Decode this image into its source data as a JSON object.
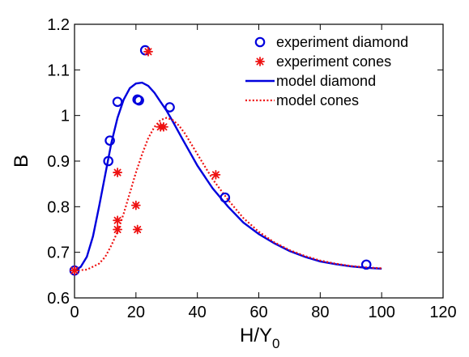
{
  "chart_data": {
    "type": "scatter",
    "title": "",
    "xlabel": "H/Y",
    "xlabel_sub": "0",
    "ylabel": "B",
    "xlim": [
      0,
      120
    ],
    "ylim": [
      0.6,
      1.2
    ],
    "xticks": [
      0,
      20,
      40,
      60,
      80,
      100,
      120
    ],
    "xtick_labels": [
      "0",
      "20",
      "40",
      "60",
      "80",
      "100",
      "120"
    ],
    "yticks": [
      0.6,
      0.7,
      0.8,
      0.9,
      1.0,
      1.1,
      1.2
    ],
    "ytick_labels": [
      "0.6",
      "0.7",
      "0.8",
      "0.9",
      "1",
      "1.1",
      "1.2"
    ],
    "grid": false,
    "legend_position": "top-right",
    "colors": {
      "blue": "#0000dd",
      "red": "#ee1111"
    },
    "series": [
      {
        "name": "experiment diamond",
        "kind": "scatter",
        "marker": "open-circle",
        "color": "#0000dd",
        "points": [
          {
            "x": 0,
            "y": 0.66
          },
          {
            "x": 11,
            "y": 0.9
          },
          {
            "x": 11.5,
            "y": 0.945
          },
          {
            "x": 14,
            "y": 1.03
          },
          {
            "x": 20.5,
            "y": 1.035
          },
          {
            "x": 21,
            "y": 1.033
          },
          {
            "x": 23,
            "y": 1.143
          },
          {
            "x": 31,
            "y": 1.018
          },
          {
            "x": 49,
            "y": 0.82
          },
          {
            "x": 95,
            "y": 0.673
          }
        ]
      },
      {
        "name": "experiment cones",
        "kind": "scatter",
        "marker": "asterisk",
        "color": "#ee1111",
        "points": [
          {
            "x": 0,
            "y": 0.66
          },
          {
            "x": 14,
            "y": 0.875
          },
          {
            "x": 14,
            "y": 0.77
          },
          {
            "x": 14,
            "y": 0.75
          },
          {
            "x": 20,
            "y": 0.803
          },
          {
            "x": 20.5,
            "y": 0.75
          },
          {
            "x": 24,
            "y": 1.14
          },
          {
            "x": 28,
            "y": 0.975
          },
          {
            "x": 29,
            "y": 0.975
          },
          {
            "x": 46,
            "y": 0.87
          }
        ]
      },
      {
        "name": "model diamond",
        "kind": "line",
        "style": "solid",
        "color": "#0000dd",
        "points": [
          {
            "x": 0,
            "y": 0.66
          },
          {
            "x": 2,
            "y": 0.668
          },
          {
            "x": 4,
            "y": 0.69
          },
          {
            "x": 6,
            "y": 0.735
          },
          {
            "x": 8,
            "y": 0.8
          },
          {
            "x": 10,
            "y": 0.87
          },
          {
            "x": 12,
            "y": 0.94
          },
          {
            "x": 14,
            "y": 0.995
          },
          {
            "x": 16,
            "y": 1.035
          },
          {
            "x": 18,
            "y": 1.06
          },
          {
            "x": 20,
            "y": 1.07
          },
          {
            "x": 22,
            "y": 1.072
          },
          {
            "x": 24,
            "y": 1.065
          },
          {
            "x": 26,
            "y": 1.05
          },
          {
            "x": 28,
            "y": 1.03
          },
          {
            "x": 30,
            "y": 1.01
          },
          {
            "x": 32,
            "y": 0.987
          },
          {
            "x": 35,
            "y": 0.95
          },
          {
            "x": 40,
            "y": 0.89
          },
          {
            "x": 45,
            "y": 0.84
          },
          {
            "x": 50,
            "y": 0.8
          },
          {
            "x": 55,
            "y": 0.765
          },
          {
            "x": 60,
            "y": 0.74
          },
          {
            "x": 65,
            "y": 0.72
          },
          {
            "x": 70,
            "y": 0.703
          },
          {
            "x": 75,
            "y": 0.69
          },
          {
            "x": 80,
            "y": 0.68
          },
          {
            "x": 85,
            "y": 0.674
          },
          {
            "x": 90,
            "y": 0.669
          },
          {
            "x": 95,
            "y": 0.666
          },
          {
            "x": 100,
            "y": 0.664
          }
        ]
      },
      {
        "name": "model cones",
        "kind": "line",
        "style": "dotted",
        "color": "#ee1111",
        "points": [
          {
            "x": 0,
            "y": 0.66
          },
          {
            "x": 4,
            "y": 0.662
          },
          {
            "x": 8,
            "y": 0.675
          },
          {
            "x": 10,
            "y": 0.69
          },
          {
            "x": 12,
            "y": 0.715
          },
          {
            "x": 14,
            "y": 0.745
          },
          {
            "x": 16,
            "y": 0.785
          },
          {
            "x": 18,
            "y": 0.83
          },
          {
            "x": 20,
            "y": 0.875
          },
          {
            "x": 22,
            "y": 0.915
          },
          {
            "x": 24,
            "y": 0.95
          },
          {
            "x": 26,
            "y": 0.975
          },
          {
            "x": 28,
            "y": 0.99
          },
          {
            "x": 30,
            "y": 0.995
          },
          {
            "x": 32,
            "y": 0.99
          },
          {
            "x": 34,
            "y": 0.978
          },
          {
            "x": 36,
            "y": 0.96
          },
          {
            "x": 40,
            "y": 0.915
          },
          {
            "x": 45,
            "y": 0.86
          },
          {
            "x": 50,
            "y": 0.815
          },
          {
            "x": 55,
            "y": 0.775
          },
          {
            "x": 60,
            "y": 0.745
          },
          {
            "x": 65,
            "y": 0.722
          },
          {
            "x": 70,
            "y": 0.705
          },
          {
            "x": 75,
            "y": 0.692
          },
          {
            "x": 80,
            "y": 0.682
          },
          {
            "x": 85,
            "y": 0.675
          },
          {
            "x": 90,
            "y": 0.67
          },
          {
            "x": 95,
            "y": 0.667
          },
          {
            "x": 100,
            "y": 0.665
          }
        ]
      }
    ]
  }
}
